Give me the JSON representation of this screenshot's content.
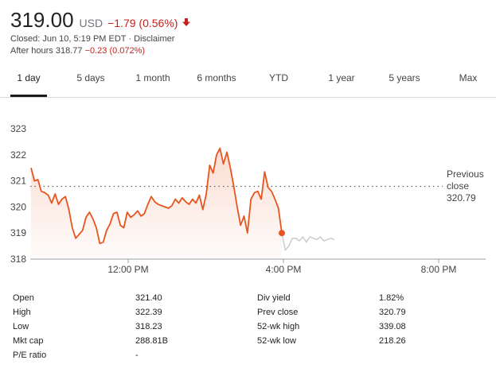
{
  "quote": {
    "price": "319.00",
    "currency": "USD",
    "change": "−1.79 (0.56%)",
    "closed_text": "Closed: Jun 10, 5:19 PM EDT · ",
    "disclaimer": "Disclaimer",
    "after_hours_label": "After hours 318.77 ",
    "after_hours_change": "−0.23 (0.072%)",
    "color_negative": "#c5221f"
  },
  "tabs": [
    "1 day",
    "5 days",
    "1 month",
    "6 months",
    "YTD",
    "1 year",
    "5 years",
    "Max"
  ],
  "active_tab": "1 day",
  "chart_data": {
    "type": "line",
    "y_ticks": [
      "323",
      "322",
      "321",
      "320",
      "319",
      "318"
    ],
    "x_ticks": [
      "12:00 PM",
      "4:00 PM",
      "8:00 PM"
    ],
    "ylim": [
      318,
      323
    ],
    "previous_close_label": [
      "Previous",
      "close",
      "320.79"
    ],
    "previous_close": 320.79,
    "line_color": "#e8541e",
    "after_hours_color": "#cccccc",
    "series": [
      {
        "values": [
          321.5,
          321.0,
          321.05,
          320.6,
          320.55,
          320.45,
          320.15,
          320.5,
          320.1,
          320.3,
          320.4,
          319.9,
          319.2,
          318.8,
          318.95,
          319.1,
          319.6,
          319.8,
          319.55,
          319.2,
          318.6,
          318.65,
          319.1,
          319.35,
          319.75,
          319.8,
          319.3,
          319.2,
          319.8,
          319.6,
          319.7,
          319.85,
          319.65,
          319.75,
          320.1,
          320.4,
          320.2,
          320.1,
          320.05,
          320.0,
          319.95,
          320.05,
          320.3,
          320.15,
          320.35,
          320.2,
          320.1,
          320.3,
          320.15,
          320.45,
          319.9,
          320.5,
          321.6,
          321.3,
          322.0,
          322.25,
          321.65,
          322.1,
          321.5,
          320.8,
          320.0,
          319.3,
          319.65,
          319.0,
          320.3,
          320.55,
          320.6,
          320.3,
          321.35,
          320.75,
          320.6,
          320.3,
          319.95,
          319.0
        ],
        "after_hours": [
          319.0,
          318.35,
          318.5,
          318.8,
          318.8,
          318.7,
          318.85,
          318.65,
          318.85,
          318.8,
          318.75,
          318.85,
          318.7,
          318.75,
          318.8,
          318.75
        ]
      }
    ]
  },
  "stats": {
    "left": [
      {
        "label": "Open",
        "value": "321.40"
      },
      {
        "label": "High",
        "value": "322.39"
      },
      {
        "label": "Low",
        "value": "318.23"
      },
      {
        "label": "Mkt cap",
        "value": "288.81B"
      },
      {
        "label": "P/E ratio",
        "value": "-"
      }
    ],
    "right": [
      {
        "label": "Div yield",
        "value": "1.82%"
      },
      {
        "label": "Prev close",
        "value": "320.79"
      },
      {
        "label": "52-wk high",
        "value": "339.08"
      },
      {
        "label": "52-wk low",
        "value": "218.26"
      }
    ]
  }
}
